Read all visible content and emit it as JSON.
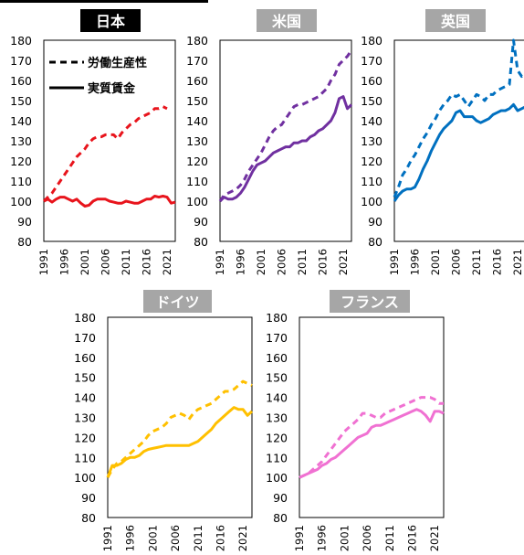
{
  "legend": {
    "productivity": "労働生産性",
    "wages": "実質賃金"
  },
  "chart_data": [
    {
      "type": "line",
      "title": "日本",
      "title_bg": "#000000",
      "color": "#e8141c",
      "ylim": [
        80,
        180
      ],
      "yticks": [
        80,
        90,
        100,
        110,
        120,
        130,
        140,
        150,
        160,
        170,
        180
      ],
      "x_range": [
        1991,
        2023
      ],
      "xticks": [
        "1991",
        "1996",
        "2001",
        "2006",
        "2011",
        "2016",
        "2021"
      ],
      "series": [
        {
          "name": "労働生産性",
          "dash": true,
          "x": [
            1991,
            1992,
            1993,
            1994,
            1995,
            1996,
            1997,
            1998,
            1999,
            2000,
            2001,
            2002,
            2003,
            2004,
            2005,
            2006,
            2007,
            2008,
            2009,
            2010,
            2011,
            2012,
            2013,
            2014,
            2015,
            2016,
            2017,
            2018,
            2019,
            2020,
            2021
          ],
          "y": [
            100,
            102,
            104,
            107,
            110,
            113,
            116,
            119,
            122,
            124,
            126,
            129,
            131,
            132,
            132,
            133,
            133,
            133,
            131,
            134,
            136,
            138,
            139,
            141,
            142,
            143,
            144,
            146,
            146,
            147,
            146
          ]
        },
        {
          "name": "実質賃金",
          "dash": false,
          "x": [
            1991,
            1992,
            1993,
            1994,
            1995,
            1996,
            1997,
            1998,
            1999,
            2000,
            2001,
            2002,
            2003,
            2004,
            2005,
            2006,
            2007,
            2008,
            2009,
            2010,
            2011,
            2012,
            2013,
            2014,
            2015,
            2016,
            2017,
            2018,
            2019,
            2020,
            2021,
            2022,
            2023
          ],
          "y": [
            100,
            101,
            99.5,
            101,
            102,
            102,
            101,
            100,
            101,
            99,
            97.5,
            98,
            100,
            101,
            101,
            101,
            100,
            99.5,
            99,
            99,
            100,
            99.5,
            99,
            99,
            100,
            101,
            101,
            102.5,
            102,
            102.5,
            102,
            99,
            99.5
          ]
        }
      ]
    },
    {
      "type": "line",
      "title": "米国",
      "title_bg": "#a6a6a6",
      "color": "#7030a0",
      "ylim": [
        80,
        180
      ],
      "yticks": [
        80,
        90,
        100,
        110,
        120,
        130,
        140,
        150,
        160,
        170,
        180
      ],
      "x_range": [
        1991,
        2023
      ],
      "xticks": [
        "1991",
        "1996",
        "2001",
        "2006",
        "2011",
        "2016",
        "2021"
      ],
      "series": [
        {
          "name": "労働生産性",
          "dash": true,
          "x": [
            1991,
            1992,
            1993,
            1994,
            1995,
            1996,
            1997,
            1998,
            1999,
            2000,
            2001,
            2002,
            2003,
            2004,
            2005,
            2006,
            2007,
            2008,
            2009,
            2010,
            2011,
            2012,
            2013,
            2014,
            2015,
            2016,
            2017,
            2018,
            2019,
            2020,
            2021,
            2022,
            2023
          ],
          "y": [
            100,
            103,
            104,
            105,
            106,
            108,
            111,
            115,
            118,
            121,
            124,
            128,
            132,
            135,
            137,
            138,
            141,
            144,
            147,
            148,
            148,
            149,
            150,
            151,
            152,
            154,
            156,
            160,
            163,
            168,
            170,
            172,
            175
          ]
        },
        {
          "name": "実質賃金",
          "dash": false,
          "x": [
            1991,
            1992,
            1993,
            1994,
            1995,
            1996,
            1997,
            1998,
            1999,
            2000,
            2001,
            2002,
            2003,
            2004,
            2005,
            2006,
            2007,
            2008,
            2009,
            2010,
            2011,
            2012,
            2013,
            2014,
            2015,
            2016,
            2017,
            2018,
            2019,
            2020,
            2021,
            2022,
            2023
          ],
          "y": [
            100,
            102,
            101,
            101,
            102,
            104,
            107,
            111,
            115,
            118,
            119,
            120,
            122,
            124,
            125,
            126,
            127,
            127,
            129,
            129,
            130,
            130,
            132,
            133,
            135,
            136,
            138,
            140,
            144,
            151,
            152,
            146,
            148
          ]
        }
      ]
    },
    {
      "type": "line",
      "title": "英国",
      "title_bg": "#a6a6a6",
      "color": "#0070c0",
      "ylim": [
        80,
        180
      ],
      "yticks": [
        80,
        90,
        100,
        110,
        120,
        130,
        140,
        150,
        160,
        170,
        180
      ],
      "x_range": [
        1991,
        2023
      ],
      "xticks": [
        "1991",
        "1996",
        "2001",
        "2006",
        "2011",
        "2016",
        "2021"
      ],
      "series": [
        {
          "name": "労働生産性",
          "dash": true,
          "x": [
            1991,
            1992,
            1993,
            1994,
            1995,
            1996,
            1997,
            1998,
            1999,
            2000,
            2001,
            2002,
            2003,
            2004,
            2005,
            2006,
            2007,
            2008,
            2009,
            2010,
            2011,
            2012,
            2013,
            2014,
            2015,
            2016,
            2017,
            2018,
            2019,
            2020,
            2021,
            2022,
            2023
          ],
          "y": [
            102,
            107,
            113,
            116,
            120,
            123,
            127,
            131,
            134,
            138,
            141,
            145,
            148,
            150,
            153,
            152,
            153,
            150,
            147,
            150,
            153,
            152,
            150,
            153,
            153,
            155,
            156,
            157,
            158,
            180,
            165,
            162,
            163
          ]
        },
        {
          "name": "実質賃金",
          "dash": false,
          "x": [
            1991,
            1992,
            1993,
            1994,
            1995,
            1996,
            1997,
            1998,
            1999,
            2000,
            2001,
            2002,
            2003,
            2004,
            2005,
            2006,
            2007,
            2008,
            2009,
            2010,
            2011,
            2012,
            2013,
            2014,
            2015,
            2016,
            2017,
            2018,
            2019,
            2020,
            2021,
            2022,
            2023
          ],
          "y": [
            100,
            103,
            105,
            106,
            106,
            107,
            111,
            116,
            120,
            125,
            129,
            133,
            136,
            138,
            140,
            144,
            145,
            142,
            142,
            142,
            140,
            139,
            140,
            141,
            143,
            144,
            145,
            145,
            146,
            148,
            145,
            146,
            147
          ]
        }
      ]
    },
    {
      "type": "line",
      "title": "ドイツ",
      "title_bg": "#a6a6a6",
      "color": "#ffc000",
      "ylim": [
        80,
        180
      ],
      "yticks": [
        80,
        90,
        100,
        110,
        120,
        130,
        140,
        150,
        160,
        170,
        180
      ],
      "x_range": [
        1991,
        2023
      ],
      "xticks": [
        "1991",
        "1996",
        "2001",
        "2006",
        "2011",
        "2016",
        "2021"
      ],
      "series": [
        {
          "name": "労働生産性",
          "dash": true,
          "x": [
            1991,
            1992,
            1993,
            1994,
            1995,
            1996,
            1997,
            1998,
            1999,
            2000,
            2001,
            2002,
            2003,
            2004,
            2005,
            2006,
            2007,
            2008,
            2009,
            2010,
            2011,
            2012,
            2013,
            2014,
            2015,
            2016,
            2017,
            2018,
            2019,
            2020,
            2021,
            2022,
            2023
          ],
          "y": [
            100,
            104,
            107,
            108,
            110,
            112,
            114,
            116,
            118,
            121,
            123,
            124,
            125,
            127,
            130,
            131,
            132,
            131,
            129,
            132,
            134,
            135,
            136,
            137,
            139,
            141,
            143,
            143,
            144,
            146,
            148,
            147,
            146
          ]
        },
        {
          "name": "実質賃金",
          "dash": false,
          "x": [
            1991,
            1992,
            1993,
            1994,
            1995,
            1996,
            1997,
            1998,
            1999,
            2000,
            2001,
            2002,
            2003,
            2004,
            2005,
            2006,
            2007,
            2008,
            2009,
            2010,
            2011,
            2012,
            2013,
            2014,
            2015,
            2016,
            2017,
            2018,
            2019,
            2020,
            2021,
            2022,
            2023
          ],
          "y": [
            100,
            106,
            106,
            107,
            109,
            110,
            110,
            111,
            113,
            114,
            114.5,
            115,
            115.5,
            116,
            116,
            116,
            116,
            116,
            116,
            117,
            118,
            120,
            122,
            124,
            127,
            129,
            131,
            133,
            135,
            134,
            134,
            131,
            133
          ]
        }
      ]
    },
    {
      "type": "line",
      "title": "フランス",
      "title_bg": "#a6a6a6",
      "color": "#f071d2",
      "ylim": [
        80,
        180
      ],
      "yticks": [
        80,
        90,
        100,
        110,
        120,
        130,
        140,
        150,
        160,
        170,
        180
      ],
      "x_range": [
        1991,
        2023
      ],
      "xticks": [
        "1991",
        "1996",
        "2001",
        "2006",
        "2011",
        "2016",
        "2021"
      ],
      "series": [
        {
          "name": "労働生産性",
          "dash": true,
          "x": [
            1991,
            1992,
            1993,
            1994,
            1995,
            1996,
            1997,
            1998,
            1999,
            2000,
            2001,
            2002,
            2003,
            2004,
            2005,
            2006,
            2007,
            2008,
            2009,
            2010,
            2011,
            2012,
            2013,
            2014,
            2015,
            2016,
            2017,
            2018,
            2019,
            2020,
            2021,
            2022,
            2023
          ],
          "y": [
            100,
            101,
            102,
            104,
            106,
            108,
            111,
            114,
            117,
            120,
            123,
            125,
            127,
            129,
            132,
            132,
            131,
            130,
            130,
            132,
            133,
            134,
            135,
            136,
            137,
            138,
            139,
            140,
            140,
            140,
            139,
            137,
            137
          ]
        },
        {
          "name": "実質賃金",
          "dash": false,
          "x": [
            1991,
            1992,
            1993,
            1994,
            1995,
            1996,
            1997,
            1998,
            1999,
            2000,
            2001,
            2002,
            2003,
            2004,
            2005,
            2006,
            2007,
            2008,
            2009,
            2010,
            2011,
            2012,
            2013,
            2014,
            2015,
            2016,
            2017,
            2018,
            2019,
            2020,
            2021,
            2022,
            2023
          ],
          "y": [
            100,
            101,
            102,
            103,
            104,
            106,
            107,
            109,
            110,
            112,
            114,
            116,
            118,
            120,
            121,
            122,
            125,
            126,
            126,
            127,
            128,
            129,
            130,
            131,
            132,
            133,
            134,
            133,
            131,
            128,
            133,
            133,
            132
          ]
        }
      ]
    }
  ]
}
